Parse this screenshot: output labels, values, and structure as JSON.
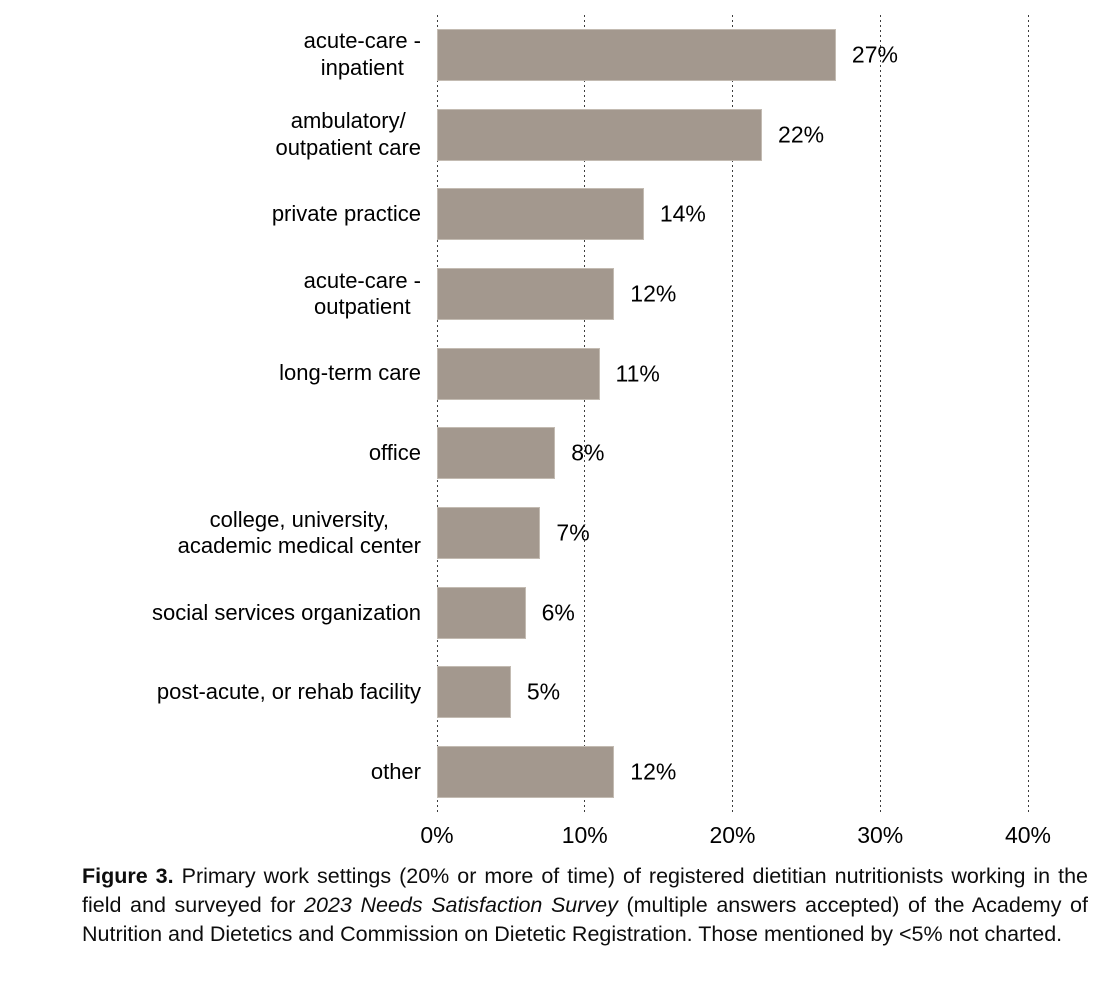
{
  "chart_data": {
    "type": "bar",
    "orientation": "horizontal",
    "title": "",
    "xlabel": "",
    "ylabel": "",
    "categories": [
      "acute-care -\ninpatient",
      "ambulatory/\noutpatient care",
      "private practice",
      "acute-care -\noutpatient",
      "long-term care",
      "office",
      "college, university,\nacademic medical center",
      "social services organization",
      "post-acute, or rehab facility",
      "other"
    ],
    "values": [
      27,
      22,
      14,
      12,
      11,
      8,
      7,
      6,
      5,
      12
    ],
    "data_labels": [
      "27%",
      "22%",
      "14%",
      "12%",
      "11%",
      "8%",
      "7%",
      "6%",
      "5%",
      "12%"
    ],
    "xlim": [
      0,
      40
    ],
    "xticks": [
      {
        "value": 0,
        "label": "0%"
      },
      {
        "value": 10,
        "label": "10%"
      },
      {
        "value": 20,
        "label": "20%"
      },
      {
        "value": 30,
        "label": "30%"
      },
      {
        "value": 40,
        "label": "40%"
      }
    ],
    "grid": "vertical-dotted",
    "legend": "none",
    "bar_color": "#a3988e",
    "bar_border_color": "#c3bbb2",
    "gridline_color": "#3d3d3d"
  },
  "caption": {
    "fig_label": "Figure 3.",
    "part1": " Primary work settings (20% or more of time) of registered dietitian nutritionists working in the field and surveyed for ",
    "italic": "2023 Needs Satisfaction Survey",
    "part2": " (multiple answers accepted) of the Academy of Nutrition and Dietetics and Commission on Dietetic Registration. Those mentioned by <5% not charted."
  }
}
